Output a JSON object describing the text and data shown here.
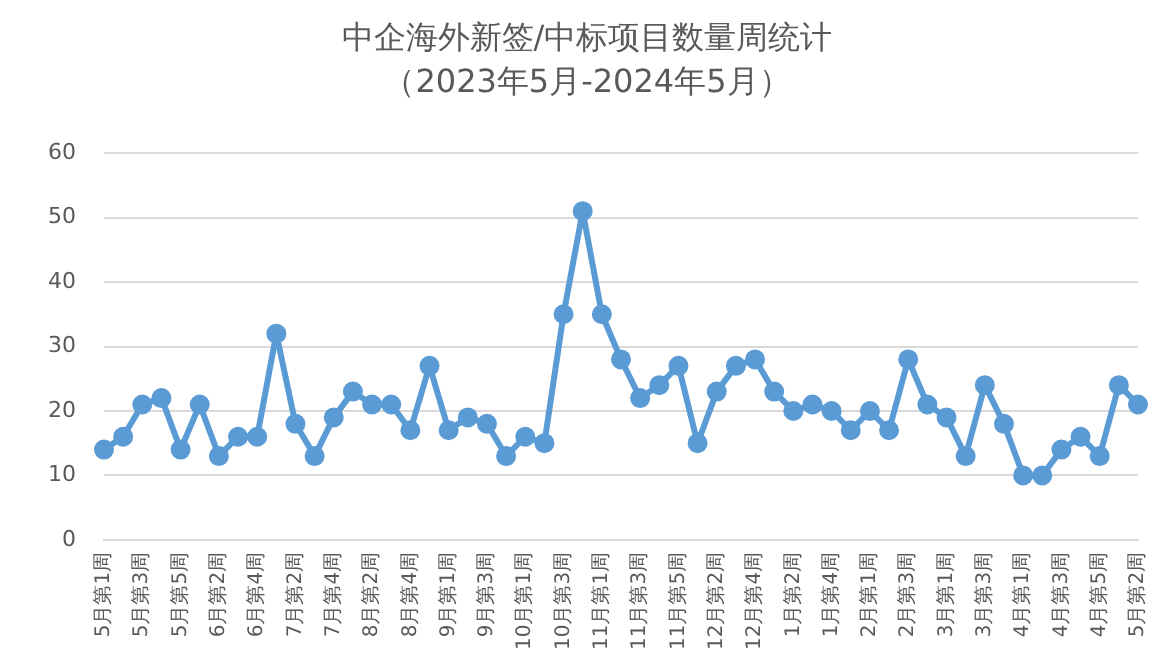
{
  "chart_data": {
    "type": "line",
    "title": "中企海外新签/中标项目数量周统计",
    "subtitle": "（2023年5月-2024年5月）",
    "categories": [
      "5月第1周",
      null,
      "5月第3周",
      null,
      "5月第5周",
      null,
      "6月第2周",
      null,
      "6月第4周",
      null,
      "7月第2周",
      null,
      "7月第4周",
      null,
      "8月第2周",
      null,
      "8月第4周",
      null,
      "9月第1周",
      null,
      "9月第3周",
      null,
      "10月第1周",
      null,
      "10月第3周",
      null,
      "11月第1周",
      null,
      "11月第3周",
      null,
      "11月第5周",
      null,
      "12月第2周",
      null,
      "12月第4周",
      null,
      "1月第2周",
      null,
      "1月第4周",
      null,
      "2月第1周",
      null,
      "2月第3周",
      null,
      "3月第1周",
      null,
      "3月第3周",
      null,
      "4月第1周",
      null,
      "4月第3周",
      null,
      "4月第5周",
      null,
      "5月第2周"
    ],
    "series": [
      {
        "color": "#5b9bd5",
        "values": [
          14,
          16,
          21,
          22,
          14,
          21,
          13,
          16,
          16,
          32,
          18,
          13,
          19,
          23,
          21,
          21,
          17,
          27,
          17,
          19,
          18,
          13,
          16,
          15,
          35,
          51,
          35,
          28,
          22,
          24,
          27,
          15,
          23,
          27,
          28,
          23,
          20,
          21,
          20,
          17,
          20,
          17,
          28,
          21,
          19,
          13,
          24,
          18,
          10,
          10,
          14,
          16,
          13,
          24,
          21
        ]
      }
    ],
    "ylim": [
      0,
      60
    ],
    "yticks": [
      0,
      10,
      20,
      30,
      40,
      50,
      60
    ],
    "grid": "y",
    "legend": false,
    "marker": "circle",
    "line_style": "solid"
  }
}
